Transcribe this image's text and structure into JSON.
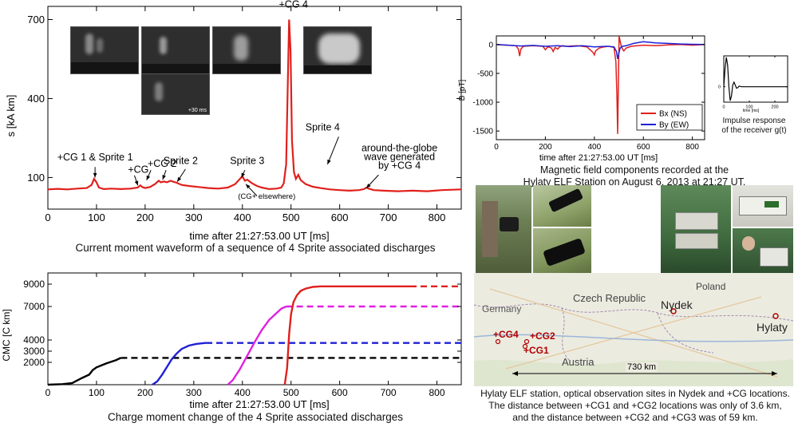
{
  "chart_data": [
    {
      "type": "line",
      "id": "current-moment",
      "caption": "Current moment waveform of a sequence of 4 Sprite associated discharges",
      "xlabel": "time after 21:27:53.00 UT [ms]",
      "ylabel": "s  [kA km]",
      "xlim": [
        0,
        850
      ],
      "ylim": [
        -20,
        750
      ],
      "xticks": [
        0,
        100,
        200,
        300,
        400,
        500,
        600,
        700,
        800
      ],
      "yticks": [
        100,
        400,
        700
      ],
      "grid": false,
      "series": [
        {
          "color": "#e0201c",
          "x": [
            0,
            20,
            40,
            60,
            80,
            90,
            95,
            100,
            105,
            115,
            130,
            150,
            170,
            185,
            190,
            195,
            200,
            210,
            220,
            228,
            232,
            238,
            245,
            252,
            258,
            265,
            275,
            290,
            310,
            330,
            350,
            370,
            385,
            395,
            400,
            405,
            410,
            420,
            430,
            440,
            455,
            470,
            480,
            485,
            490,
            493,
            496,
            499,
            502,
            506,
            510,
            515,
            520,
            530,
            545,
            560,
            580,
            600,
            620,
            640,
            650,
            655,
            660,
            670,
            690,
            720,
            750,
            780,
            810,
            850
          ],
          "y": [
            55,
            57,
            55,
            58,
            60,
            72,
            95,
            82,
            62,
            56,
            58,
            56,
            58,
            62,
            70,
            63,
            60,
            64,
            75,
            88,
            82,
            85,
            82,
            88,
            84,
            80,
            72,
            68,
            64,
            60,
            58,
            62,
            75,
            95,
            105,
            88,
            92,
            78,
            68,
            62,
            56,
            58,
            62,
            78,
            150,
            420,
            700,
            580,
            240,
            120,
            95,
            110,
            90,
            75,
            65,
            60,
            55,
            52,
            50,
            52,
            56,
            62,
            58,
            52,
            50,
            48,
            50,
            48,
            52,
            55
          ]
        }
      ],
      "annotations": [
        {
          "text": "+CG 1 & Sprite 1",
          "x": 97,
          "y": 165
        },
        {
          "text": "+CG 2",
          "x": 235,
          "y": 140
        },
        {
          "text": "+CG",
          "x": 186,
          "y": 118
        },
        {
          "text": "Sprite 2",
          "x": 273,
          "y": 152
        },
        {
          "text": "Sprite 3",
          "x": 410,
          "y": 152
        },
        {
          "text": "(CG+ elsewhere)",
          "x": 450,
          "y": 20
        },
        {
          "text": "+CG 4",
          "x": 505,
          "y": 745
        },
        {
          "text": "Sprite 4",
          "x": 565,
          "y": 278
        },
        {
          "text": "around-the-globe",
          "x": 723,
          "y": 200
        },
        {
          "text": "wave generated",
          "x": 723,
          "y": 167
        },
        {
          "text": "by +CG 4",
          "x": 723,
          "y": 133
        }
      ],
      "inset_labels": [
        "+30 ms"
      ]
    },
    {
      "type": "line",
      "id": "charge-moment-change",
      "caption": "Charge moment change of the 4 Sprite associated discharges",
      "xlabel": "time after 21:27:53.00 UT [ms]",
      "ylabel": "CMC [C km]",
      "xlim": [
        0,
        850
      ],
      "ylim": [
        0,
        10000
      ],
      "xticks": [
        0,
        100,
        200,
        300,
        400,
        500,
        600,
        700,
        800
      ],
      "yticks": [
        2000,
        3000,
        4000,
        7000,
        9000
      ],
      "grid": false,
      "series": [
        {
          "color": "#000000",
          "x": [
            0,
            30,
            50,
            70,
            85,
            92,
            100,
            120,
            140,
            150
          ],
          "y": [
            0,
            50,
            150,
            600,
            900,
            1300,
            1550,
            1900,
            2200,
            2400
          ],
          "dashed_x": [
            150,
            850
          ],
          "dashed_y": 2400
        },
        {
          "color": "#1f1fd6",
          "x": [
            215,
            225,
            235,
            245,
            255,
            265,
            275,
            290,
            305,
            320,
            325
          ],
          "y": [
            0,
            300,
            900,
            1600,
            2300,
            2800,
            3200,
            3500,
            3650,
            3720,
            3740
          ],
          "dashed_x": [
            325,
            850
          ],
          "dashed_y": 3740
        },
        {
          "color": "#e020e0",
          "x": [
            370,
            380,
            395,
            410,
            425,
            440,
            455,
            470,
            480,
            490
          ],
          "y": [
            0,
            400,
            1400,
            2600,
            3800,
            4900,
            5800,
            6400,
            6800,
            7000
          ],
          "dashed_x": [
            490,
            850
          ],
          "dashed_y": 7000
        },
        {
          "color": "#e0201c",
          "x": [
            487,
            492,
            496,
            500,
            505,
            512,
            520,
            530,
            545,
            560,
            600,
            650,
            700,
            745
          ],
          "y": [
            0,
            1500,
            4500,
            6300,
            7400,
            8000,
            8400,
            8600,
            8750,
            8800,
            8800,
            8800,
            8800,
            8800
          ],
          "dashed_x": [
            745,
            850
          ],
          "dashed_y": 8800
        }
      ]
    },
    {
      "type": "line",
      "id": "magnetic-field",
      "caption_lines": [
        "Magnetic field components recorded at the",
        "Hylaty ELF Station on August 6, 2013 at 21:27 UT."
      ],
      "xlabel": "time after 21:27:53.00 UT [ms]",
      "ylabel": "B [pT]",
      "xlim": [
        0,
        850
      ],
      "ylim": [
        -1650,
        150
      ],
      "xticks": [
        0,
        200,
        400,
        600,
        800
      ],
      "yticks": [
        0,
        -500,
        -1000,
        -1500
      ],
      "grid": false,
      "legend": "lower-right",
      "series": [
        {
          "name": "Bx (NS)",
          "color": "#e0201c",
          "x": [
            0,
            40,
            80,
            90,
            95,
            100,
            110,
            150,
            190,
            200,
            210,
            225,
            232,
            240,
            250,
            258,
            270,
            290,
            330,
            370,
            395,
            400,
            405,
            420,
            440,
            460,
            480,
            488,
            492,
            495,
            498,
            501,
            505,
            510,
            515,
            520,
            530,
            550,
            600,
            650,
            700,
            750,
            800,
            850
          ],
          "y": [
            0,
            -10,
            -20,
            -80,
            -200,
            -80,
            -30,
            -20,
            -30,
            -90,
            -40,
            -60,
            -120,
            -50,
            -80,
            -40,
            -20,
            -30,
            -20,
            -40,
            -140,
            -180,
            -110,
            -60,
            -40,
            -30,
            -50,
            -300,
            -900,
            -1550,
            -700,
            150,
            60,
            -30,
            -80,
            -110,
            -60,
            -30,
            -10,
            -20,
            -5,
            0,
            -10,
            0
          ]
        },
        {
          "name": "By (EW)",
          "color": "#1f1fd6",
          "x": [
            0,
            50,
            100,
            150,
            200,
            250,
            300,
            350,
            400,
            450,
            480,
            490,
            495,
            500,
            505,
            515,
            530,
            560,
            600,
            650,
            700,
            750,
            800,
            850
          ],
          "y": [
            0,
            -10,
            -25,
            -15,
            -30,
            -20,
            -35,
            -20,
            -40,
            -30,
            -40,
            -120,
            -250,
            -150,
            -60,
            -30,
            -20,
            20,
            50,
            30,
            20,
            10,
            5,
            0
          ]
        }
      ]
    },
    {
      "type": "line",
      "id": "impulse-response",
      "caption_lines": [
        "Impulse response",
        "of the receiver g(t)"
      ],
      "xlabel": "time [ms]",
      "ylabel": "",
      "xlim": [
        0,
        250
      ],
      "ylim": [
        -0.5,
        1.0
      ],
      "xticks": [
        0,
        100,
        200
      ],
      "yticks": [
        0
      ],
      "series": [
        {
          "color": "#000000",
          "x": [
            0,
            5,
            10,
            15,
            20,
            25,
            30,
            35,
            40,
            45,
            50,
            55,
            60,
            65,
            70,
            80,
            100,
            150,
            250
          ],
          "y": [
            0,
            0.6,
            0.95,
            0.7,
            0.0,
            -0.45,
            -0.3,
            0.05,
            0.15,
            0.05,
            -0.05,
            -0.03,
            0.02,
            0.01,
            0,
            0,
            0,
            0,
            0
          ]
        }
      ]
    }
  ],
  "map": {
    "labels": {
      "germany": "Germany",
      "czech": "Czech Republic",
      "poland": "Poland",
      "austria": "Austria",
      "nydek": "Nydek",
      "hylaty": "Hylaty",
      "cg4": "+CG4",
      "cg2": "+CG2",
      "cg1": "+CG1",
      "distance": "730 km"
    },
    "caption_lines": [
      "Hylaty ELF station, optical observation sites in Nydek and +CG locations.",
      "The distance between +CG1 and +CG2 locations was only of 3.6 km,",
      "and the distance between +CG2 and +CG3 was of 59 km."
    ]
  },
  "colors": {
    "red": "#e0201c",
    "blue": "#1f1fd6",
    "magenta": "#e020e0",
    "black": "#000000",
    "map_label": "#b00000"
  }
}
